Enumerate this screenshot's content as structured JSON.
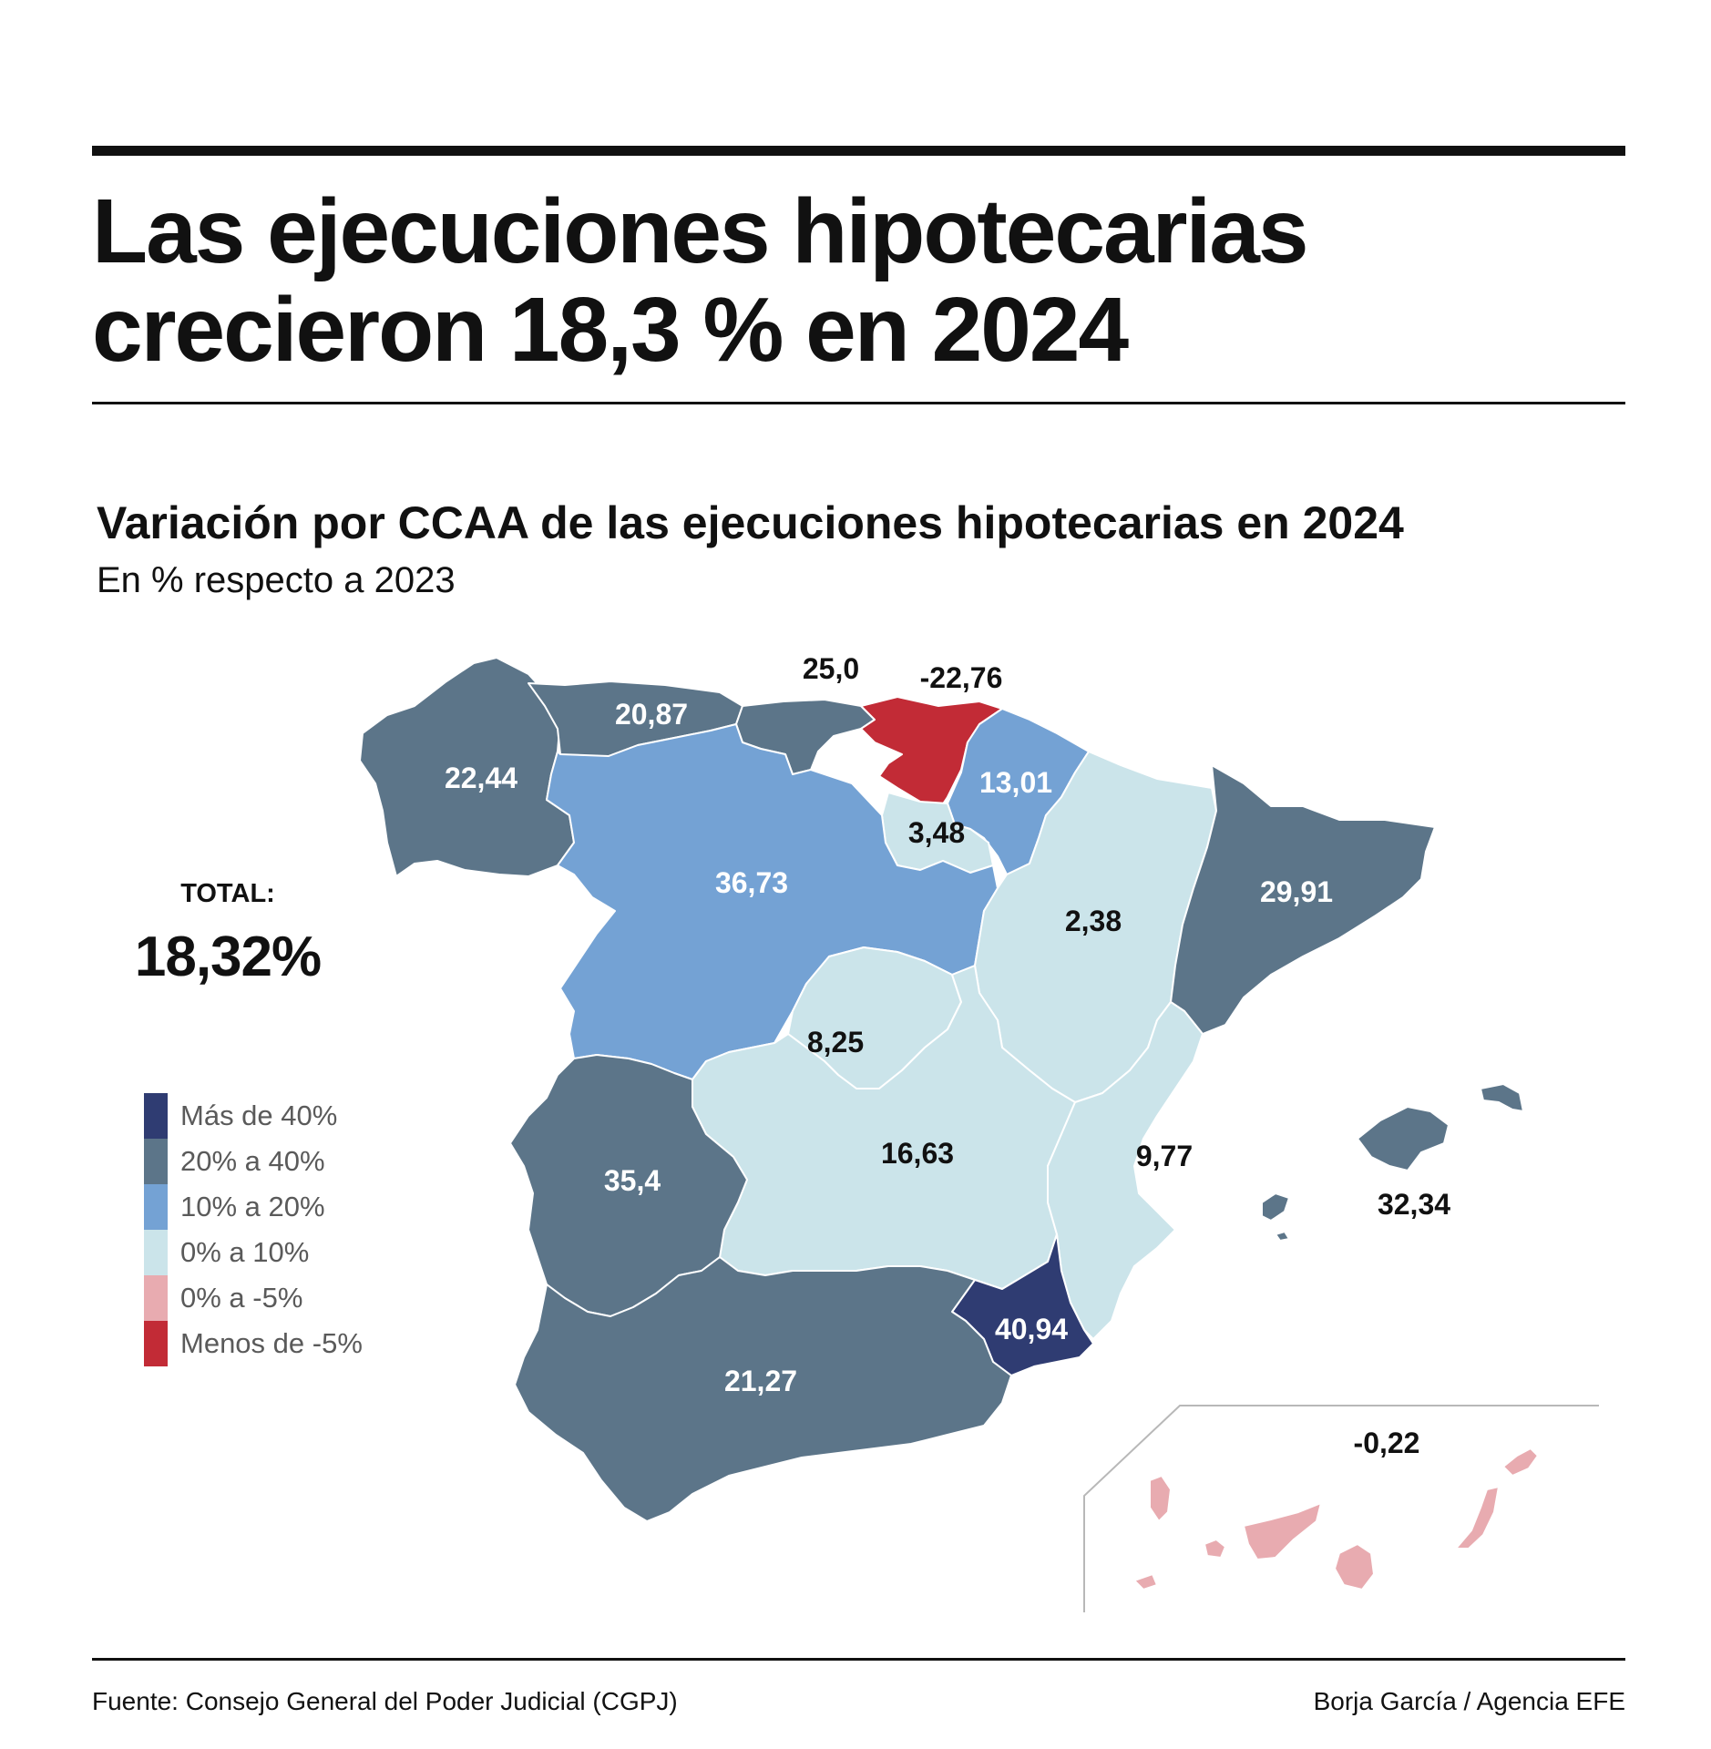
{
  "header": {
    "title_line1": "Las ejecuciones hipotecarias",
    "title_line2": "crecieron 18,3 % en 2024",
    "subtitle": "Variación por CCAA de las ejecuciones hipotecarias en 2024",
    "unit_note": "En % respecto a 2023"
  },
  "total": {
    "label": "TOTAL:",
    "value": "18,32%"
  },
  "legend": [
    {
      "label": "Más de 40%",
      "color": "#2f3c72"
    },
    {
      "label": "20% a 40%",
      "color": "#5c7589"
    },
    {
      "label": "10% a 20%",
      "color": "#74a2d4"
    },
    {
      "label": "0% a 10%",
      "color": "#cbe4ea"
    },
    {
      "label": "0% a -5%",
      "color": "#e8abb0"
    },
    {
      "label": "Menos de -5%",
      "color": "#c22b36"
    }
  ],
  "regions": {
    "galicia": "22,44",
    "asturias": "20,87",
    "cantabria": "25,0",
    "pais_vasco": "-22,76",
    "navarra": "13,01",
    "la_rioja": "3,48",
    "aragon": "2,38",
    "cataluna": "29,91",
    "castilla_leon": "36,73",
    "madrid": "8,25",
    "castilla_la_mancha": "16,63",
    "comunidad_valenciana": "9,77",
    "baleares": "32,34",
    "extremadura": "35,4",
    "andalucia": "21,27",
    "murcia": "40,94",
    "canarias": "-0,22"
  },
  "footer": {
    "source": "Fuente: Consejo General del Poder Judicial (CGPJ)",
    "credit": "Borja García / Agencia EFE"
  }
}
